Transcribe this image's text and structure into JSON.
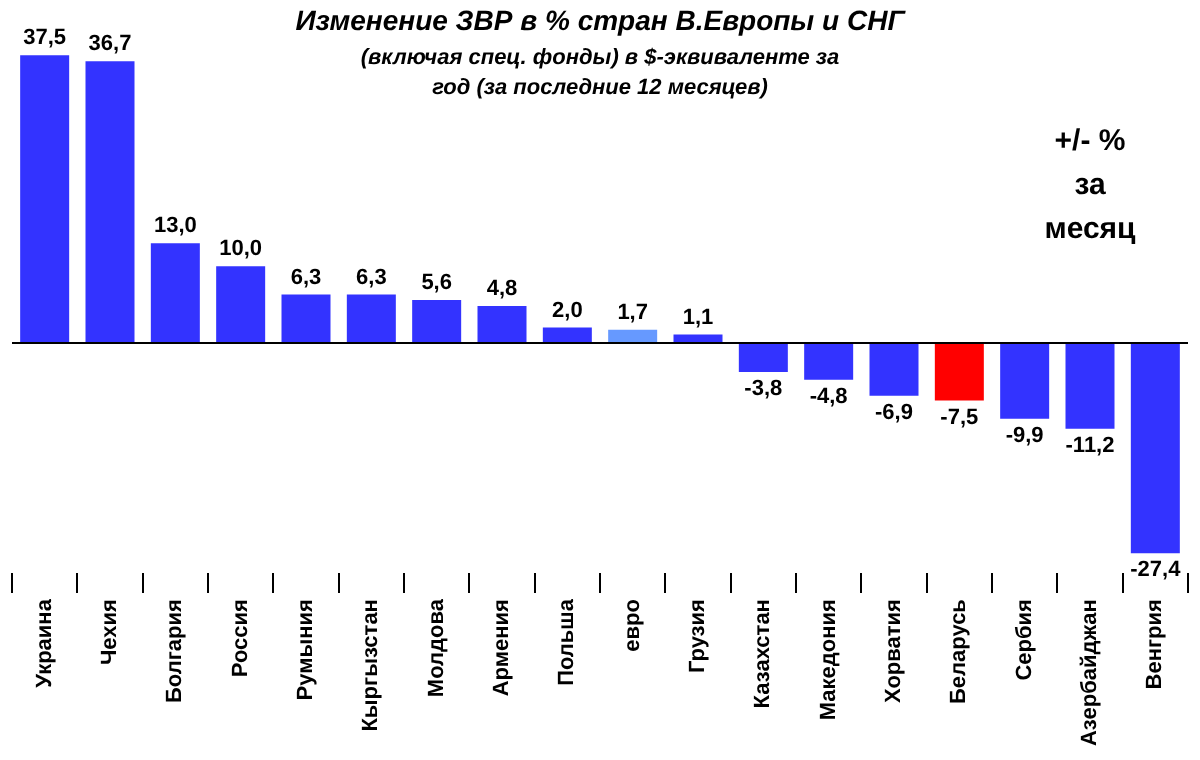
{
  "chart_data": {
    "type": "bar",
    "title": "Изменение ЗВР в % стран В.Европы и СНГ",
    "subtitle": "(включая спец. фонды) в $-эквиваленте за год (за последние 12 месяцев)",
    "categories": [
      "Украина",
      "Чехия",
      "Болгария",
      "Россия",
      "Румыния",
      "Кыргызстан",
      "Молдова",
      "Армения",
      "Польша",
      "евро",
      "Грузия",
      "Казахстан",
      "Македония",
      "Хорватия",
      "Беларусь",
      "Сербия",
      "Азербайджан",
      "Венгрия"
    ],
    "values": [
      37.5,
      36.7,
      13.0,
      10.0,
      6.3,
      6.3,
      5.6,
      4.8,
      2.0,
      1.7,
      1.1,
      -3.8,
      -4.8,
      -6.9,
      -7.5,
      -9.9,
      -11.2,
      -27.4
    ],
    "value_labels": [
      "37,5",
      "36,7",
      "13,0",
      "10,0",
      "6,3",
      "6,3",
      "5,6",
      "4,8",
      "2,0",
      "1,7",
      "1,1",
      "-3,8",
      "-4,8",
      "-6,9",
      "-7,5",
      "-9,9",
      "-11,2",
      "-27,4"
    ],
    "colors": [
      "#3333ff",
      "#3333ff",
      "#3333ff",
      "#3333ff",
      "#3333ff",
      "#3333ff",
      "#3333ff",
      "#3333ff",
      "#3333ff",
      "#6699ff",
      "#3333ff",
      "#3333ff",
      "#3333ff",
      "#3333ff",
      "#ff0000",
      "#3333ff",
      "#3333ff",
      "#3333ff"
    ],
    "annotations": [
      "+/- % за месяц"
    ],
    "legend": false
  }
}
